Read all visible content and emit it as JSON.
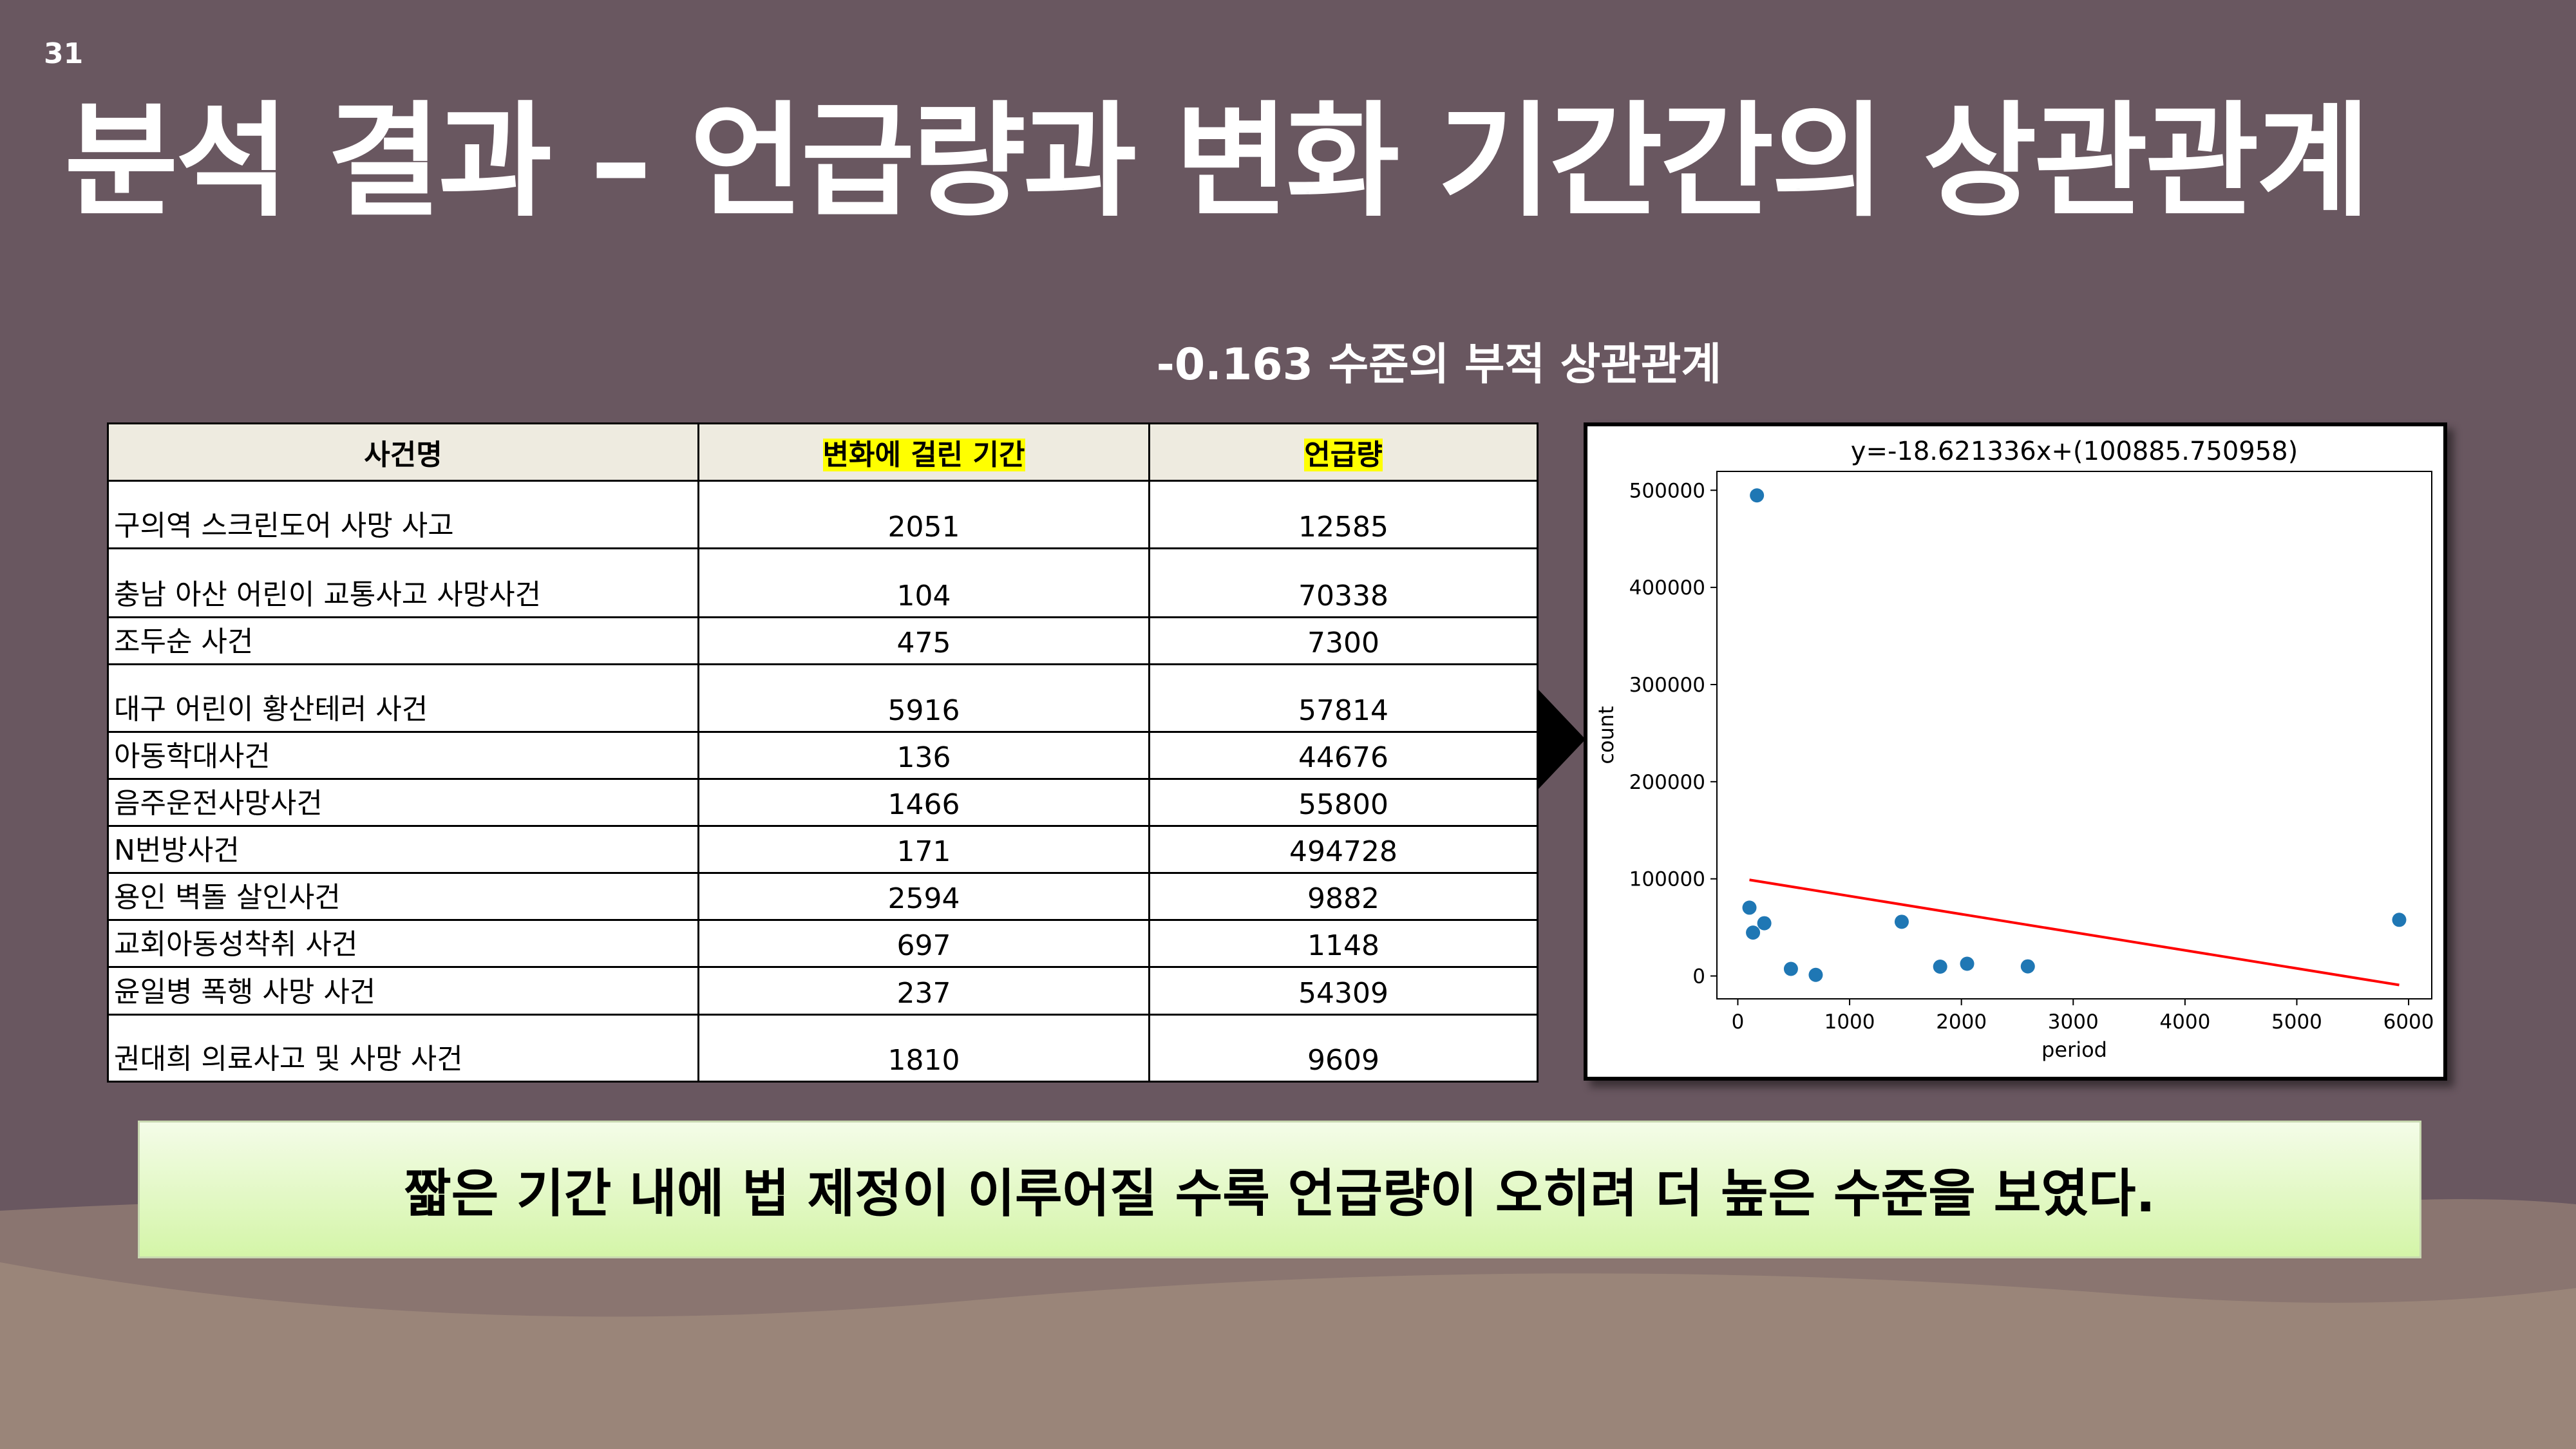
{
  "slide_number": "31",
  "title": "분석 결과 – 언급량과 변화 기간간의 상관관계",
  "subtitle": "-0.163 수준의 부적 상관관계",
  "table": {
    "header": [
      "사건명",
      "변화에 걸린 기간",
      "언급량"
    ],
    "rows": [
      [
        "구의역 스크린도어 사망 사고",
        2051,
        12585
      ],
      [
        "충남 아산 어린이 교통사고 사망사건",
        104,
        70338
      ],
      [
        "조두순 사건",
        475,
        7300
      ],
      [
        "대구 어린이 황산테러 사건",
        5916,
        57814
      ],
      [
        "아동학대사건",
        136,
        44676
      ],
      [
        "음주운전사망사건",
        1466,
        55800
      ],
      [
        "N번방사건",
        171,
        494728
      ],
      [
        "용인 벽돌 살인사건",
        2594,
        9882
      ],
      [
        "교회아동성착취 사건",
        697,
        1148
      ],
      [
        "윤일병 폭행 사망 사건",
        237,
        54309
      ],
      [
        "권대희 의료사고 및 사망 사건",
        1810,
        9609
      ]
    ]
  },
  "chart_data": {
    "type": "scatter",
    "title": "y=-18.621336x+(100885.750958)",
    "x_label": "period",
    "y_label": "count",
    "x": [
      2051,
      104,
      475,
      5916,
      136,
      1466,
      171,
      2594,
      697,
      237,
      1810
    ],
    "values": [
      12585,
      70338,
      7300,
      57814,
      44676,
      55800,
      494728,
      9882,
      1148,
      54309,
      9609
    ],
    "color": "#1f77b4",
    "fit": {
      "slope": -18.621336,
      "intercept": 100885.750958,
      "color": "#ff0000"
    },
    "xlim": [
      -187,
      6207
    ],
    "ylim": [
      -23531,
      519407
    ],
    "xticks": [
      0,
      1000,
      2000,
      3000,
      4000,
      5000,
      6000
    ],
    "yticks": [
      0,
      100000,
      200000,
      300000,
      400000,
      500000
    ]
  },
  "caption": "짧은 기간 내에 법 제정이 이루어질 수록 언급량이 오히려 더 높은 수준을 보였다."
}
